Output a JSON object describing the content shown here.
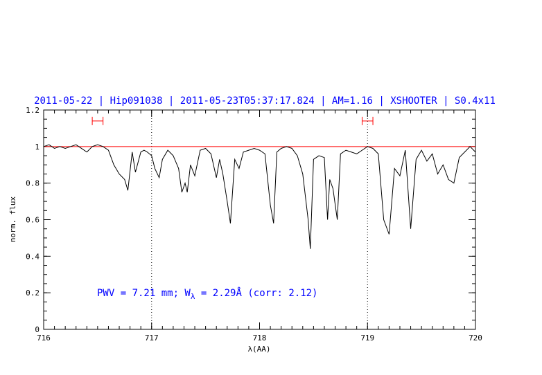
{
  "chart_data": {
    "type": "line",
    "title": "2011-05-22 | Hip091038 | 2011-05-23T05:37:17.824 | AM=1.16 | XSHOOTER | S0.4x11",
    "xlabel": "λ(AA)",
    "ylabel": "norm. flux",
    "xlim": [
      716,
      720
    ],
    "ylim": [
      0,
      1.2
    ],
    "xticks": [
      "716",
      "717",
      "718",
      "719",
      "720"
    ],
    "yticks": [
      "0",
      "0.2",
      "0.4",
      "0.6",
      "0.8",
      "1",
      "1.2"
    ],
    "annotation": {
      "pwv_text": "PWV = 7.21 mm; W",
      "sub": "λ",
      "eq_text": " = 2.29Å (corr: 2.12)"
    },
    "reference_line": {
      "y": 1.0,
      "color": "#ff0000"
    },
    "vertical_markers": [
      717.0,
      719.0
    ],
    "continuum_windows": [
      {
        "from": 716.45,
        "to": 716.55,
        "y": 1.14
      },
      {
        "from": 718.95,
        "to": 719.05,
        "y": 1.14
      }
    ],
    "series": [
      {
        "color": "#000000",
        "x": [
          716.0,
          716.05,
          716.1,
          716.15,
          716.2,
          716.25,
          716.3,
          716.35,
          716.4,
          716.45,
          716.5,
          716.55,
          716.6,
          716.65,
          716.7,
          716.75,
          716.78,
          716.82,
          716.85,
          716.9,
          716.93,
          716.96,
          717.0,
          717.03,
          717.07,
          717.1,
          717.15,
          717.2,
          717.25,
          717.28,
          717.31,
          717.33,
          717.36,
          717.4,
          717.45,
          717.5,
          717.55,
          717.6,
          717.63,
          717.66,
          717.7,
          717.73,
          717.77,
          717.81,
          717.85,
          717.9,
          717.95,
          718.0,
          718.05,
          718.1,
          718.13,
          718.16,
          718.2,
          718.25,
          718.3,
          718.35,
          718.4,
          718.45,
          718.47,
          718.5,
          718.55,
          718.6,
          718.63,
          718.65,
          718.68,
          718.72,
          718.75,
          718.8,
          718.85,
          718.9,
          718.95,
          719.0,
          719.05,
          719.1,
          719.15,
          719.2,
          719.25,
          719.3,
          719.35,
          719.4,
          719.45,
          719.5,
          719.55,
          719.6,
          719.65,
          719.7,
          719.75,
          719.8,
          719.85,
          719.9,
          719.95,
          720.0
        ],
        "y": [
          1.0,
          1.01,
          0.99,
          1.0,
          0.99,
          1.0,
          1.01,
          0.99,
          0.97,
          1.0,
          1.01,
          1.0,
          0.98,
          0.9,
          0.85,
          0.82,
          0.76,
          0.97,
          0.86,
          0.97,
          0.98,
          0.97,
          0.95,
          0.88,
          0.83,
          0.93,
          0.98,
          0.95,
          0.88,
          0.75,
          0.8,
          0.75,
          0.9,
          0.84,
          0.98,
          0.99,
          0.96,
          0.83,
          0.93,
          0.85,
          0.7,
          0.58,
          0.93,
          0.88,
          0.97,
          0.98,
          0.99,
          0.98,
          0.96,
          0.68,
          0.58,
          0.97,
          0.99,
          1.0,
          0.99,
          0.95,
          0.85,
          0.6,
          0.44,
          0.93,
          0.95,
          0.94,
          0.6,
          0.82,
          0.77,
          0.6,
          0.96,
          0.98,
          0.97,
          0.96,
          0.98,
          1.0,
          0.99,
          0.96,
          0.6,
          0.52,
          0.88,
          0.84,
          0.98,
          0.55,
          0.93,
          0.98,
          0.92,
          0.96,
          0.85,
          0.9,
          0.82,
          0.8,
          0.94,
          0.97,
          1.0,
          0.97
        ]
      }
    ]
  }
}
